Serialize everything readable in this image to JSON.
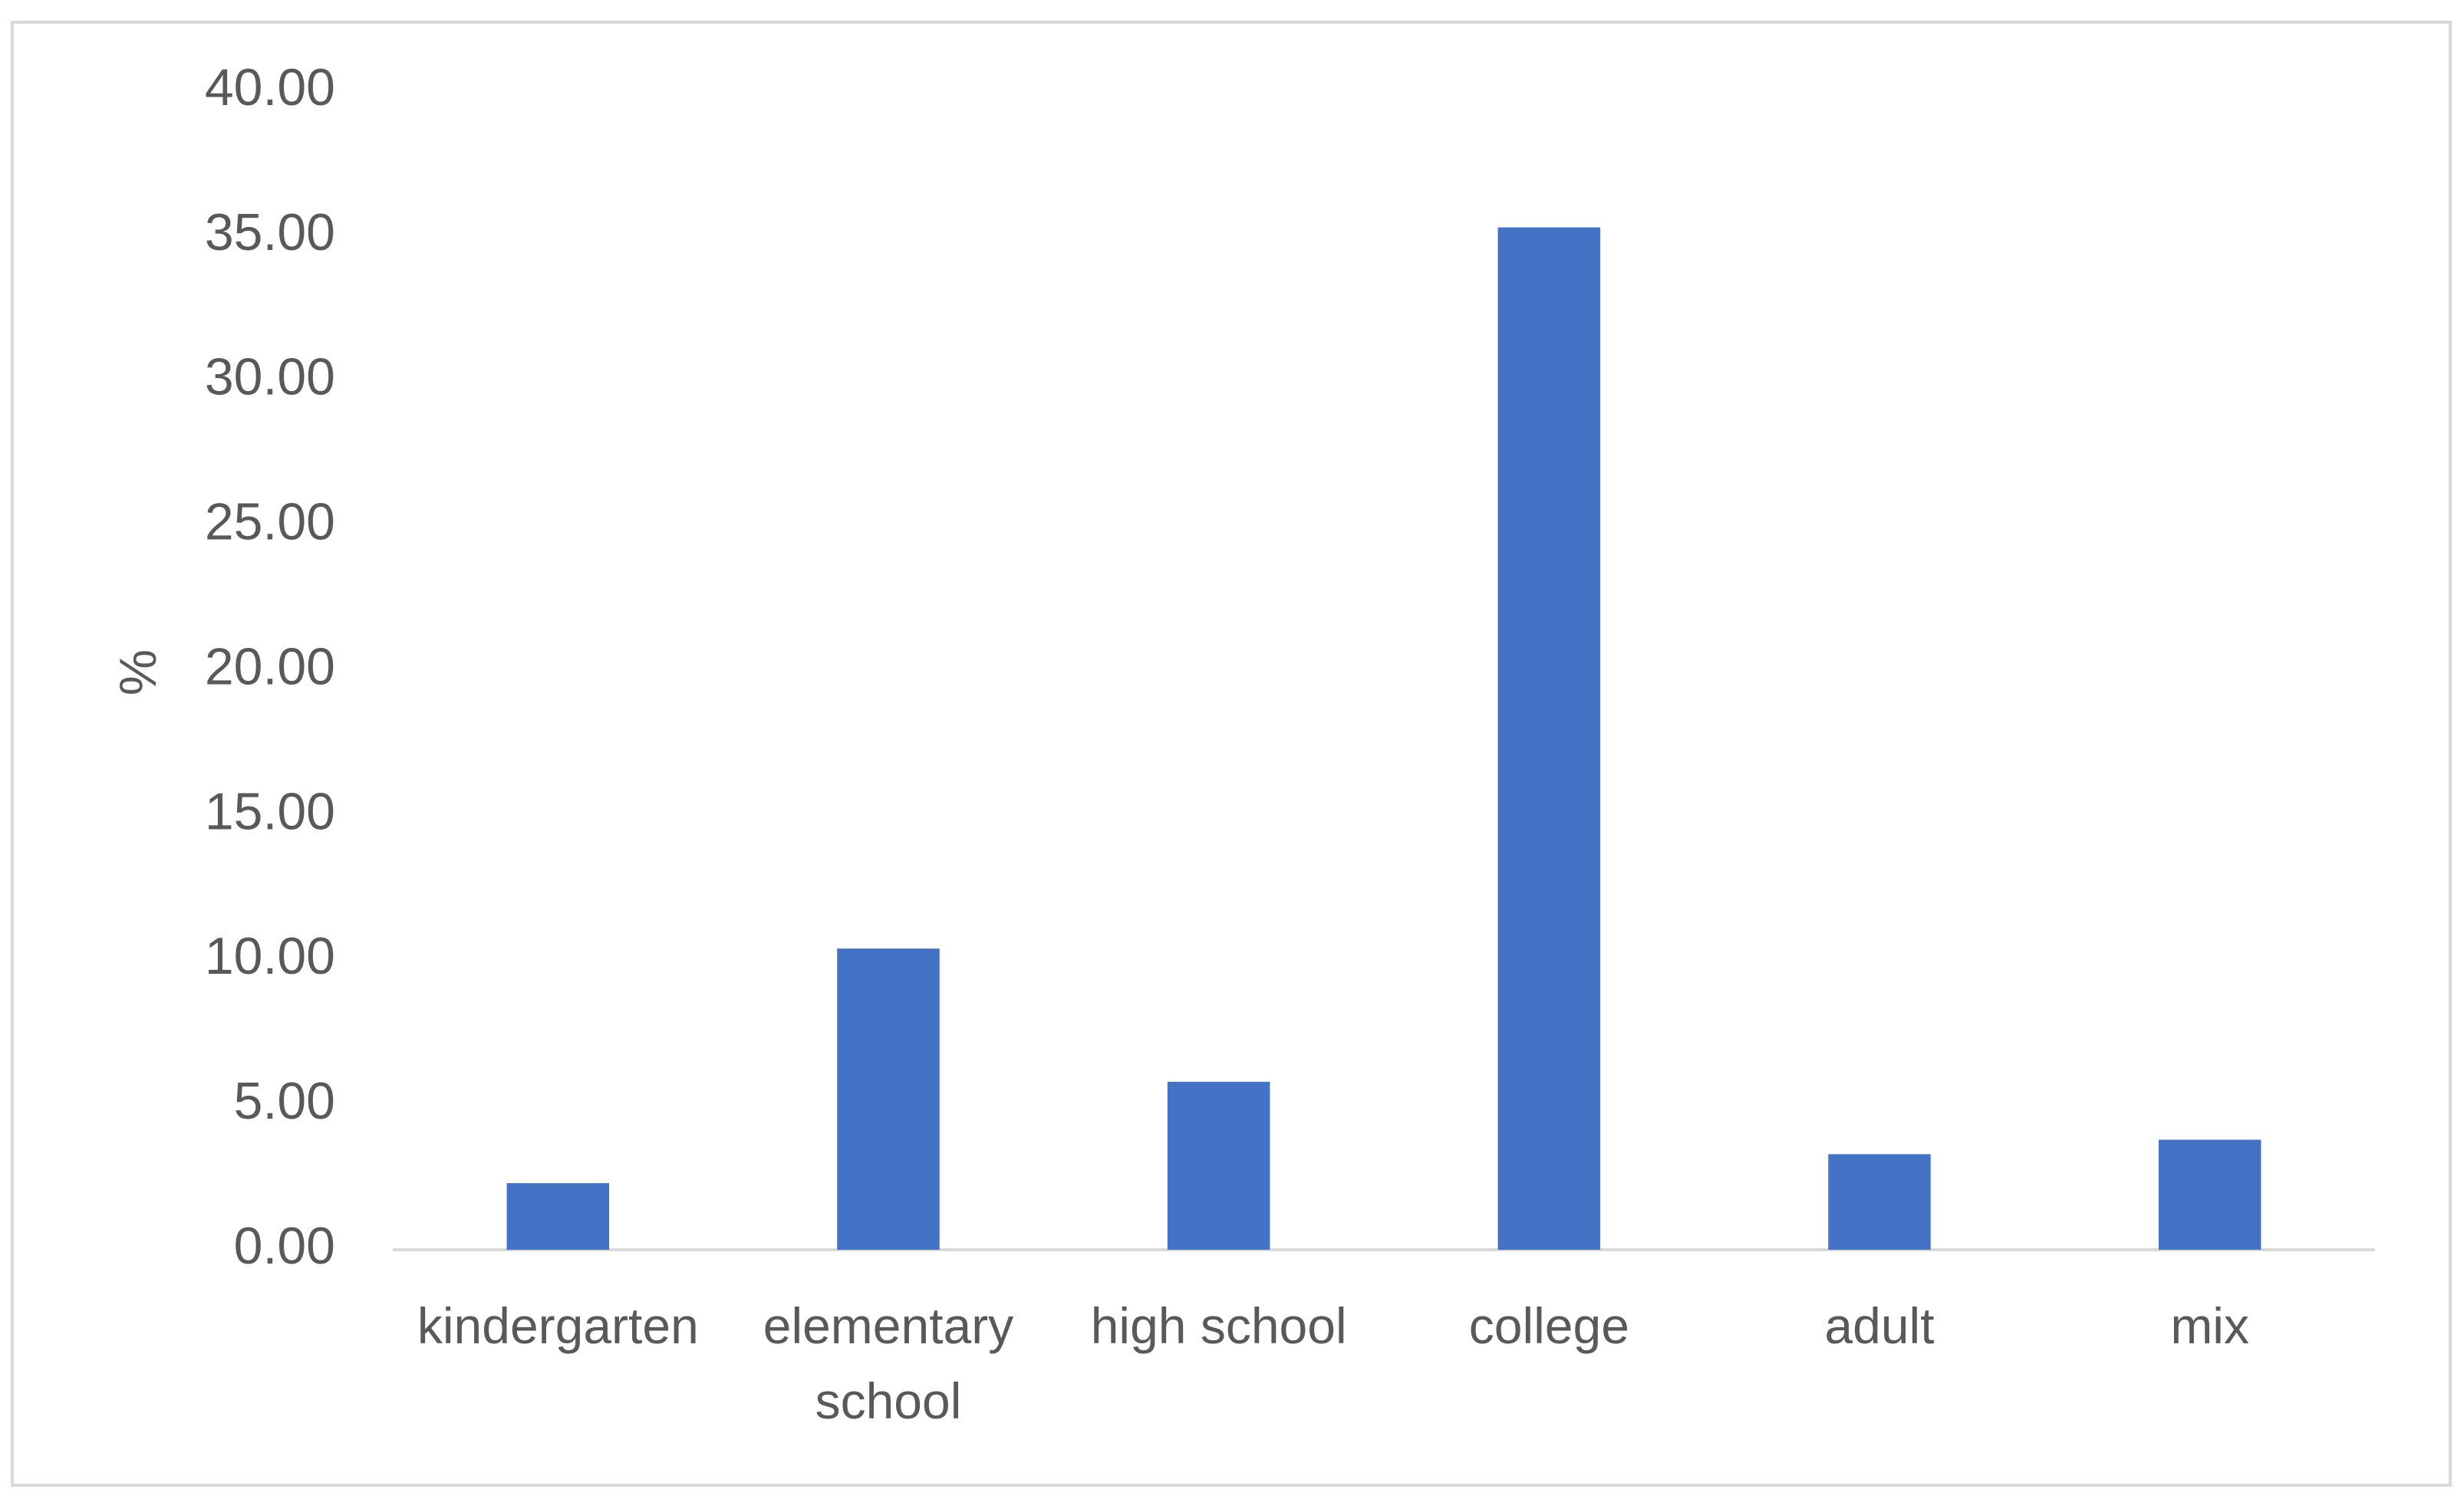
{
  "chart_data": {
    "type": "bar",
    "y_label": "%",
    "categories": [
      "kindergarten",
      "elementary school",
      "high school",
      "college",
      "adult",
      "mix"
    ],
    "values": [
      2.3,
      10.4,
      5.8,
      35.3,
      3.3,
      3.8
    ],
    "color": "#4472c4",
    "ylim": [
      0,
      40
    ],
    "yticks": [
      {
        "value": 0,
        "label": "0.00"
      },
      {
        "value": 5,
        "label": "5.00"
      },
      {
        "value": 10,
        "label": "10.00"
      },
      {
        "value": 15,
        "label": "15.00"
      },
      {
        "value": 20,
        "label": "20.00"
      },
      {
        "value": 25,
        "label": "25.00"
      },
      {
        "value": 30,
        "label": "30.00"
      },
      {
        "value": 35,
        "label": "35.00"
      },
      {
        "value": 40,
        "label": "40.00"
      }
    ],
    "grid": false
  }
}
